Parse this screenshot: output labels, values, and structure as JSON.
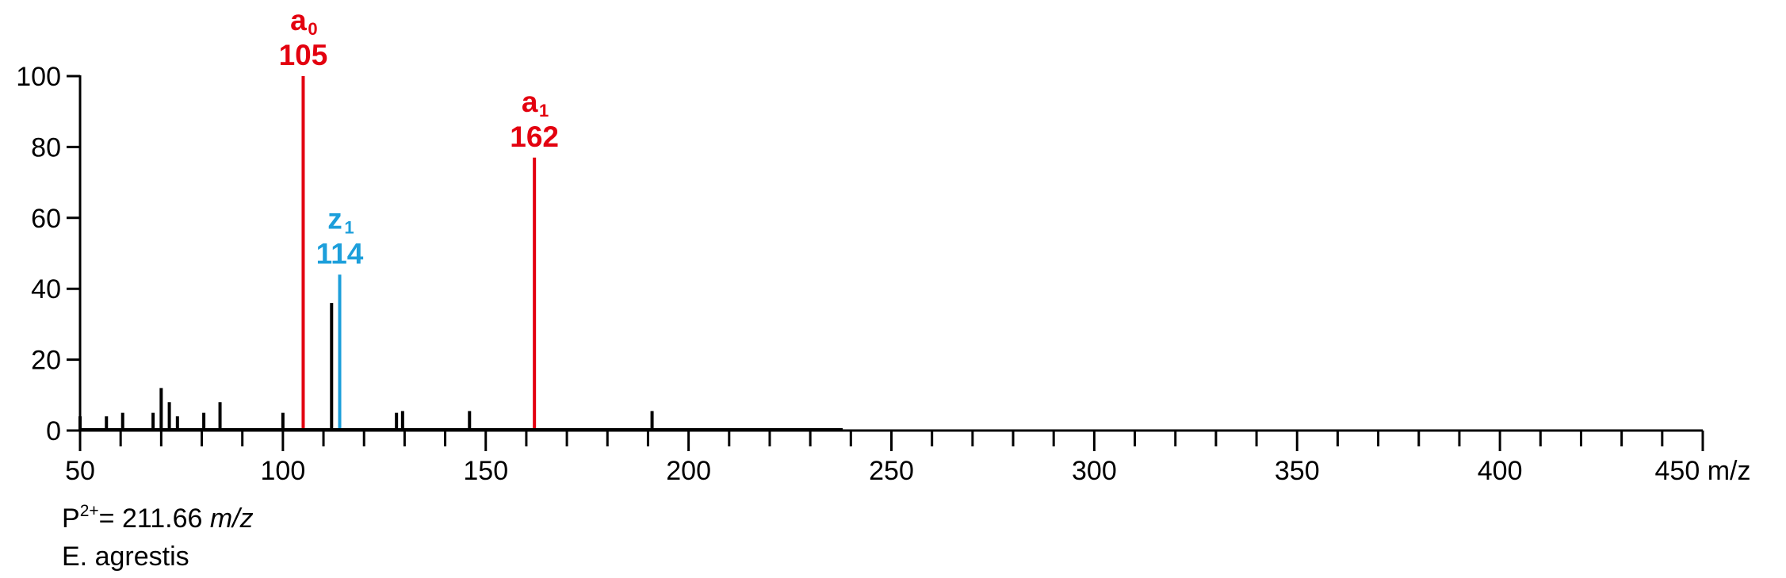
{
  "chart_data": {
    "type": "bar",
    "xlim": [
      50,
      450
    ],
    "ylim": [
      0,
      100
    ],
    "x_ticks": [
      "50",
      "100",
      "150",
      "200",
      "250",
      "300",
      "350",
      "400",
      "450"
    ],
    "x_unit": "m/z",
    "y_ticks": [
      "0",
      "20",
      "40",
      "60",
      "80",
      "100"
    ],
    "minor_tick_step": 10,
    "peaks": [
      {
        "x": 50,
        "y": 4
      },
      {
        "x": 56.5,
        "y": 4
      },
      {
        "x": 60.5,
        "y": 5
      },
      {
        "x": 68,
        "y": 5
      },
      {
        "x": 70,
        "y": 12
      },
      {
        "x": 72,
        "y": 8
      },
      {
        "x": 74,
        "y": 4
      },
      {
        "x": 80.5,
        "y": 5
      },
      {
        "x": 84.5,
        "y": 8
      },
      {
        "x": 100,
        "y": 5
      },
      {
        "x": 105,
        "y": 100,
        "color": "#e3000f",
        "ion": "a",
        "sub": "0",
        "mz": "105"
      },
      {
        "x": 112,
        "y": 36
      },
      {
        "x": 114,
        "y": 44,
        "color": "#1d9fdb",
        "ion": "z",
        "sub": "1",
        "mz": "114"
      },
      {
        "x": 128,
        "y": 5
      },
      {
        "x": 129.5,
        "y": 5.5
      },
      {
        "x": 146,
        "y": 5.5
      },
      {
        "x": 162,
        "y": 77,
        "color": "#e3000f",
        "ion": "a",
        "sub": "1",
        "mz": "162"
      },
      {
        "x": 191,
        "y": 5.5
      }
    ],
    "baseline_noise_end": 238,
    "colors": {
      "a_ion": "#e3000f",
      "z_ion": "#1d9fdb",
      "other": "#000000"
    }
  },
  "footer": {
    "precursor_prefix": "P",
    "precursor_charge": "2+",
    "precursor_value": "= 211.66 ",
    "precursor_unit": "m/z",
    "species": "E. agrestis"
  }
}
